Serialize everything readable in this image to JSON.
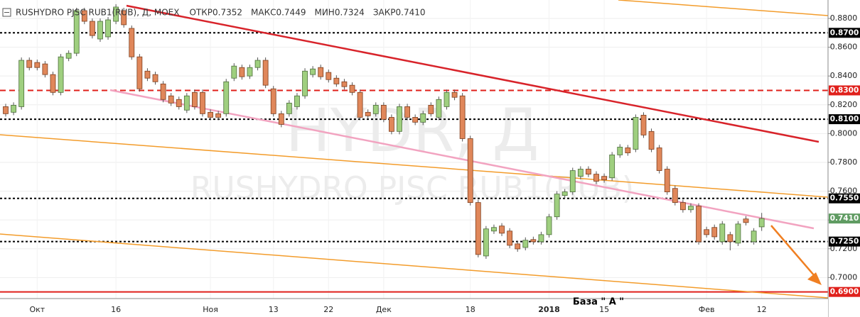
{
  "chart_data": {
    "type": "candlestick",
    "header": {
      "title": "RUSHYDRO PJSC RUB1(RUB), Д, MOEX",
      "fields": [
        {
          "label": "ОТКР",
          "value": "0.7352"
        },
        {
          "label": "МАКС",
          "value": "0.7449"
        },
        {
          "label": "МИН",
          "value": "0.7324"
        },
        {
          "label": "ЗАКР",
          "value": "0.7410"
        }
      ]
    },
    "watermark": {
      "symbol": "HYDR, Д",
      "name": "RUSHYDRO PJSC RUB1(RUB)"
    },
    "annotation": "База \" А \"",
    "categories": [
      null,
      null,
      null,
      null,
      "Окт",
      null,
      null,
      null,
      null,
      null,
      null,
      null,
      null,
      null,
      "16",
      null,
      null,
      null,
      null,
      null,
      null,
      null,
      null,
      null,
      null,
      null,
      "Ноя",
      null,
      null,
      null,
      null,
      null,
      null,
      null,
      "13",
      null,
      null,
      null,
      null,
      null,
      null,
      "22",
      null,
      null,
      null,
      null,
      null,
      null,
      "Дек",
      null,
      null,
      null,
      null,
      null,
      null,
      null,
      null,
      null,
      null,
      "18",
      null,
      null,
      null,
      null,
      null,
      null,
      null,
      null,
      null,
      "2018",
      null,
      null,
      null,
      null,
      null,
      null,
      "15",
      null,
      null,
      null,
      null,
      null,
      null,
      null,
      null,
      null,
      null,
      null,
      null,
      "Фев",
      null,
      null,
      null,
      null,
      null,
      null,
      "12"
    ],
    "open": [
      0.8187,
      0.8148,
      0.8187,
      0.8509,
      0.8494,
      0.8484,
      0.841,
      0.8286,
      0.8523,
      0.8558,
      0.8854,
      0.878,
      0.8657,
      0.8672,
      0.878,
      0.8854,
      0.8731,
      0.8533,
      0.8434,
      0.841,
      0.8345,
      0.8262,
      0.8237,
      0.8163,
      0.8286,
      0.8286,
      0.8148,
      0.8138,
      0.8138,
      0.8385,
      0.8459,
      0.84,
      0.8459,
      0.8509,
      0.8311,
      0.8138,
      0.8138,
      0.8187,
      0.8262,
      0.841,
      0.8459,
      0.8425,
      0.8385,
      0.836,
      0.8336,
      0.8286,
      0.8148,
      0.8138,
      0.8197,
      0.8113,
      0.8015,
      0.8187,
      0.8113,
      0.8079,
      0.8197,
      0.8113,
      0.8187,
      0.8286,
      0.8262,
      0.7965,
      0.7521,
      0.715,
      0.7323,
      0.7358,
      0.7323,
      0.7234,
      0.7209,
      0.7264,
      0.7249,
      0.7298,
      0.7422,
      0.757,
      0.7595,
      0.7703,
      0.7753,
      0.7718,
      0.7703,
      0.7693,
      0.7852,
      0.7901,
      0.7891,
      0.8128,
      0.8015,
      0.7901,
      0.7753,
      0.7619,
      0.7521,
      0.7471,
      0.7496,
      0.7333,
      0.7348,
      0.7249,
      0.7298,
      0.7239,
      0.7407,
      0.7249,
      0.7352
    ],
    "high": [
      0.8207,
      0.8217,
      0.8529,
      0.8529,
      0.8514,
      0.8504,
      0.843,
      0.8553,
      0.8578,
      0.8874,
      0.8874,
      0.88,
      0.88,
      0.881,
      0.8899,
      0.8874,
      0.8751,
      0.8553,
      0.8454,
      0.843,
      0.8365,
      0.8282,
      0.8257,
      0.8282,
      0.8306,
      0.8306,
      0.8168,
      0.8158,
      0.838,
      0.8489,
      0.8479,
      0.8479,
      0.8529,
      0.8529,
      0.8331,
      0.8158,
      0.8232,
      0.8282,
      0.8454,
      0.8469,
      0.8479,
      0.8445,
      0.8405,
      0.838,
      0.8356,
      0.8306,
      0.8168,
      0.8217,
      0.8217,
      0.8133,
      0.8207,
      0.8207,
      0.8133,
      0.8158,
      0.8217,
      0.8257,
      0.8306,
      0.8306,
      0.8282,
      0.7985,
      0.7541,
      0.7358,
      0.7368,
      0.7378,
      0.7343,
      0.7254,
      0.7279,
      0.7284,
      0.7318,
      0.7442,
      0.76,
      0.7615,
      0.7763,
      0.7773,
      0.7773,
      0.7738,
      0.7723,
      0.7872,
      0.7926,
      0.7921,
      0.8133,
      0.8148,
      0.8035,
      0.7921,
      0.7773,
      0.7639,
      0.7541,
      0.7516,
      0.7516,
      0.7353,
      0.7368,
      0.7392,
      0.7318,
      0.7392,
      0.7427,
      0.7343,
      0.7449
    ],
    "low": [
      0.8118,
      0.8128,
      0.8167,
      0.8439,
      0.8439,
      0.839,
      0.8266,
      0.8266,
      0.8503,
      0.8538,
      0.876,
      0.8661,
      0.8637,
      0.8652,
      0.876,
      0.8736,
      0.8513,
      0.8291,
      0.8365,
      0.834,
      0.8217,
      0.8192,
      0.8167,
      0.8143,
      0.8167,
      0.8118,
      0.8093,
      0.8093,
      0.8118,
      0.8365,
      0.8375,
      0.838,
      0.8439,
      0.8316,
      0.8118,
      0.8044,
      0.8118,
      0.8167,
      0.8242,
      0.839,
      0.8375,
      0.8355,
      0.8325,
      0.8306,
      0.8266,
      0.8093,
      0.8103,
      0.8118,
      0.8079,
      0.7995,
      0.7995,
      0.8093,
      0.8059,
      0.8059,
      0.8118,
      0.8093,
      0.8167,
      0.8232,
      0.7945,
      0.7501,
      0.714,
      0.713,
      0.7303,
      0.7288,
      0.7204,
      0.7179,
      0.7189,
      0.7229,
      0.7229,
      0.7278,
      0.7402,
      0.755,
      0.7575,
      0.7683,
      0.7698,
      0.7649,
      0.7659,
      0.7673,
      0.7832,
      0.7846,
      0.7871,
      0.797,
      0.7871,
      0.7723,
      0.7575,
      0.7501,
      0.7451,
      0.7451,
      0.7229,
      0.7278,
      0.7263,
      0.7229,
      0.7189,
      0.7219,
      0.7362,
      0.7229,
      0.7324
    ],
    "close": [
      0.8138,
      0.8197,
      0.8509,
      0.8459,
      0.8459,
      0.841,
      0.8286,
      0.8533,
      0.8558,
      0.8854,
      0.878,
      0.8681,
      0.878,
      0.879,
      0.8879,
      0.8756,
      0.8533,
      0.8311,
      0.8385,
      0.836,
      0.8237,
      0.8212,
      0.8187,
      0.8262,
      0.8187,
      0.8138,
      0.8113,
      0.8113,
      0.836,
      0.8469,
      0.8395,
      0.8459,
      0.8509,
      0.8336,
      0.8138,
      0.8064,
      0.8212,
      0.8262,
      0.8434,
      0.8449,
      0.8395,
      0.8375,
      0.8345,
      0.8326,
      0.8286,
      0.8113,
      0.8123,
      0.8197,
      0.8099,
      0.8015,
      0.8187,
      0.8113,
      0.8079,
      0.8138,
      0.8138,
      0.8237,
      0.8286,
      0.8252,
      0.7965,
      0.7521,
      0.716,
      0.7338,
      0.7348,
      0.7308,
      0.7224,
      0.7199,
      0.7259,
      0.7249,
      0.7298,
      0.7422,
      0.758,
      0.7595,
      0.7743,
      0.7753,
      0.7718,
      0.7669,
      0.7679,
      0.7852,
      0.7906,
      0.7866,
      0.8113,
      0.799,
      0.7891,
      0.7743,
      0.7595,
      0.7521,
      0.7471,
      0.7496,
      0.7249,
      0.7298,
      0.7283,
      0.7372,
      0.7249,
      0.7372,
      0.7382,
      0.7323,
      0.741
    ],
    "up_color": "#9fcf7f",
    "down_color": "#e0875a",
    "ylim": [
      0.6854,
      0.8928
    ],
    "yticks": [
      {
        "value": 0.88,
        "label": "0.8800"
      },
      {
        "value": 0.86,
        "label": "0.8600"
      },
      {
        "value": 0.84,
        "label": "0.8400"
      },
      {
        "value": 0.82,
        "label": "0.8200"
      },
      {
        "value": 0.8,
        "label": "0.8000"
      },
      {
        "value": 0.78,
        "label": "0.7800"
      },
      {
        "value": 0.76,
        "label": "0.7600"
      },
      {
        "value": 0.74,
        "label": "0.7400"
      },
      {
        "value": 0.72,
        "label": "0.7200"
      },
      {
        "value": 0.7,
        "label": "0.7000"
      }
    ],
    "grid": true,
    "levels": [
      {
        "value": 0.87,
        "label": "0.8700",
        "color": "#000000",
        "style": "dotted"
      },
      {
        "value": 0.83,
        "label": "0.8300",
        "color": "#e0201b",
        "style": "dashed"
      },
      {
        "value": 0.81,
        "label": "0.8100",
        "color": "#000000",
        "style": "dotted"
      },
      {
        "value": 0.755,
        "label": "0.7550",
        "color": "#000000",
        "style": "dotted"
      },
      {
        "value": 0.725,
        "label": "0.7250",
        "color": "#000000",
        "style": "dotted"
      },
      {
        "value": 0.69,
        "label": "0.6900",
        "color": "#e0201b",
        "style": "solid"
      }
    ],
    "last_price": {
      "value": 0.741,
      "label": "0.7410",
      "color": "#5f9b62"
    }
  }
}
